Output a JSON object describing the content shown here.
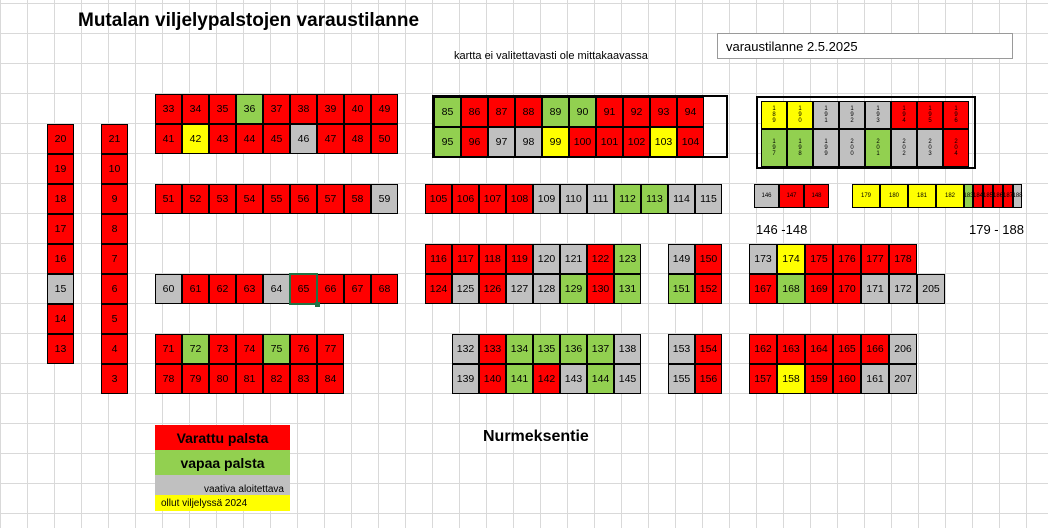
{
  "title": "Mutalan viljelypalstojen varaustilanne",
  "note": "kartta ei valitettavasti ole mittakaavassa",
  "status_date": "varaustilanne 2.5.2025",
  "road": "Nurmeksentie",
  "range_a": "146 -148",
  "range_b": "179 - 188",
  "legend": {
    "reserved": "Varattu palsta",
    "free": "vapaa palsta",
    "needs_work": "vaativa aloitettava",
    "grown_2024": "ollut viljelyssä 2024"
  },
  "colors": {
    "reserved": "#ff0000",
    "free": "#92d050",
    "needs_work": "#c0c0c0",
    "grown_2024": "#ffff00"
  },
  "blocks": [
    {
      "id": "col-20-13",
      "x0": 47,
      "y0": 124,
      "w": 27,
      "h": 30,
      "rows": [
        [
          [
            "20",
            "red"
          ]
        ],
        [
          [
            "19",
            "red"
          ]
        ],
        [
          [
            "18",
            "red"
          ]
        ],
        [
          [
            "17",
            "red"
          ]
        ],
        [
          [
            "16",
            "red"
          ]
        ],
        [
          [
            "15",
            "gray"
          ]
        ],
        [
          [
            "14",
            "red"
          ]
        ],
        [
          [
            "13",
            "red"
          ]
        ]
      ]
    },
    {
      "id": "col-21-3",
      "x0": 101,
      "y0": 124,
      "w": 27,
      "h": 30,
      "rows": [
        [
          [
            "21",
            "red"
          ]
        ],
        [
          [
            "10",
            "red"
          ]
        ],
        [
          [
            "9",
            "red"
          ]
        ],
        [
          [
            "8",
            "red"
          ]
        ],
        [
          [
            "7",
            "red"
          ]
        ],
        [
          [
            "6",
            "red"
          ]
        ],
        [
          [
            "5",
            "red"
          ]
        ],
        [
          [
            "4",
            "red"
          ]
        ],
        [
          [
            "3",
            "red"
          ]
        ]
      ]
    },
    {
      "id": "block-33-50",
      "x0": 155,
      "y0": 94,
      "w": 27,
      "h": 30,
      "rows": [
        [
          [
            "33",
            "red"
          ],
          [
            "34",
            "red"
          ],
          [
            "35",
            "red"
          ],
          [
            "36",
            "green"
          ],
          [
            "37",
            "red"
          ],
          [
            "38",
            "red"
          ],
          [
            "39",
            "red"
          ],
          [
            "40",
            "red"
          ],
          [
            "49",
            "red"
          ]
        ],
        [
          [
            "41",
            "red"
          ],
          [
            "42",
            "yellow"
          ],
          [
            "43",
            "red"
          ],
          [
            "44",
            "red"
          ],
          [
            "45",
            "red"
          ],
          [
            "46",
            "gray"
          ],
          [
            "47",
            "red"
          ],
          [
            "48",
            "red"
          ],
          [
            "50",
            "red"
          ]
        ]
      ]
    },
    {
      "id": "block-51-59",
      "x0": 155,
      "y0": 184,
      "w": 27,
      "h": 30,
      "rows": [
        [
          [
            "51",
            "red"
          ],
          [
            "52",
            "red"
          ],
          [
            "53",
            "red"
          ],
          [
            "54",
            "red"
          ],
          [
            "55",
            "red"
          ],
          [
            "56",
            "red"
          ],
          [
            "57",
            "red"
          ],
          [
            "58",
            "red"
          ],
          [
            "59",
            "gray"
          ]
        ]
      ]
    },
    {
      "id": "block-60-68",
      "x0": 155,
      "y0": 274,
      "w": 27,
      "h": 30,
      "rows": [
        [
          [
            "60",
            "gray"
          ],
          [
            "61",
            "red"
          ],
          [
            "62",
            "red"
          ],
          [
            "63",
            "red"
          ],
          [
            "64",
            "gray"
          ],
          [
            "65",
            "red"
          ],
          [
            "66",
            "red"
          ],
          [
            "67",
            "red"
          ],
          [
            "68",
            "red"
          ]
        ]
      ]
    },
    {
      "id": "block-71-84",
      "x0": 155,
      "y0": 334,
      "w": 27,
      "h": 30,
      "rows": [
        [
          [
            "71",
            "red"
          ],
          [
            "72",
            "green"
          ],
          [
            "73",
            "red"
          ],
          [
            "74",
            "red"
          ],
          [
            "75",
            "green"
          ],
          [
            "76",
            "red"
          ],
          [
            "77",
            "red"
          ]
        ],
        [
          [
            "78",
            "red"
          ],
          [
            "79",
            "red"
          ],
          [
            "80",
            "red"
          ],
          [
            "81",
            "red"
          ],
          [
            "82",
            "red"
          ],
          [
            "83",
            "red"
          ],
          [
            "84",
            "red"
          ]
        ]
      ]
    },
    {
      "id": "block-85-104",
      "x0": 434,
      "y0": 97,
      "w": 27,
      "h": 30,
      "rows": [
        [
          [
            "85",
            "green"
          ],
          [
            "86",
            "red"
          ],
          [
            "87",
            "red"
          ],
          [
            "88",
            "red"
          ],
          [
            "89",
            "green"
          ],
          [
            "90",
            "green"
          ],
          [
            "91",
            "red"
          ],
          [
            "92",
            "red"
          ],
          [
            "93",
            "red"
          ],
          [
            "94",
            "red"
          ]
        ],
        [
          [
            "95",
            "green"
          ],
          [
            "96",
            "red"
          ],
          [
            "97",
            "gray"
          ],
          [
            "98",
            "gray"
          ],
          [
            "99",
            "yellow"
          ],
          [
            "100",
            "red"
          ],
          [
            "101",
            "red"
          ],
          [
            "102",
            "red"
          ],
          [
            "103",
            "yellow"
          ],
          [
            "104",
            "red"
          ]
        ]
      ]
    },
    {
      "id": "block-105-115",
      "x0": 425,
      "y0": 184,
      "w": 27,
      "h": 30,
      "rows": [
        [
          [
            "105",
            "red"
          ],
          [
            "106",
            "red"
          ],
          [
            "107",
            "red"
          ],
          [
            "108",
            "red"
          ],
          [
            "109",
            "gray"
          ],
          [
            "110",
            "gray"
          ],
          [
            "111",
            "gray"
          ],
          [
            "112",
            "green"
          ],
          [
            "113",
            "green"
          ],
          [
            "114",
            "gray"
          ],
          [
            "115",
            "gray"
          ]
        ]
      ]
    },
    {
      "id": "block-116-131",
      "x0": 425,
      "y0": 244,
      "w": 27,
      "h": 30,
      "rows": [
        [
          [
            "116",
            "red"
          ],
          [
            "117",
            "red"
          ],
          [
            "118",
            "red"
          ],
          [
            "119",
            "red"
          ],
          [
            "120",
            "gray"
          ],
          [
            "121",
            "gray"
          ],
          [
            "122",
            "red"
          ],
          [
            "123",
            "green"
          ]
        ],
        [
          [
            "124",
            "red"
          ],
          [
            "125",
            "gray"
          ],
          [
            "126",
            "red"
          ],
          [
            "127",
            "gray"
          ],
          [
            "128",
            "gray"
          ],
          [
            "129",
            "green"
          ],
          [
            "130",
            "red"
          ],
          [
            "131",
            "green"
          ]
        ]
      ]
    },
    {
      "id": "block-132-145",
      "x0": 452,
      "y0": 334,
      "w": 27,
      "h": 30,
      "rows": [
        [
          [
            "132",
            "gray"
          ],
          [
            "133",
            "red"
          ],
          [
            "134",
            "green"
          ],
          [
            "135",
            "green"
          ],
          [
            "136",
            "green"
          ],
          [
            "137",
            "green"
          ],
          [
            "138",
            "gray"
          ]
        ],
        [
          [
            "139",
            "gray"
          ],
          [
            "140",
            "red"
          ],
          [
            "141",
            "green"
          ],
          [
            "142",
            "red"
          ],
          [
            "143",
            "gray"
          ],
          [
            "144",
            "green"
          ],
          [
            "145",
            "gray"
          ]
        ]
      ]
    },
    {
      "id": "block-149-152",
      "x0": 668,
      "y0": 244,
      "w": 27,
      "h": 30,
      "rows": [
        [
          [
            "149",
            "gray"
          ],
          [
            "150",
            "red"
          ]
        ],
        [
          [
            "151",
            "green"
          ],
          [
            "152",
            "red"
          ]
        ]
      ]
    },
    {
      "id": "block-153-156",
      "x0": 668,
      "y0": 334,
      "w": 27,
      "h": 30,
      "rows": [
        [
          [
            "153",
            "gray"
          ],
          [
            "154",
            "red"
          ]
        ],
        [
          [
            "155",
            "gray"
          ],
          [
            "156",
            "red"
          ]
        ]
      ]
    },
    {
      "id": "block-173-205",
      "x0": 749,
      "y0": 244,
      "w": 28,
      "h": 30,
      "rows": [
        [
          [
            "173",
            "gray"
          ],
          [
            "174",
            "yellow"
          ],
          [
            "175",
            "red"
          ],
          [
            "176",
            "red"
          ],
          [
            "177",
            "red"
          ],
          [
            "178",
            "red"
          ]
        ],
        [
          [
            "167",
            "red"
          ],
          [
            "168",
            "green"
          ],
          [
            "169",
            "red"
          ],
          [
            "170",
            "red"
          ],
          [
            "171",
            "gray"
          ],
          [
            "172",
            "gray"
          ],
          [
            "205",
            "gray"
          ]
        ]
      ]
    },
    {
      "id": "block-162-207",
      "x0": 749,
      "y0": 334,
      "w": 28,
      "h": 30,
      "rows": [
        [
          [
            "162",
            "red"
          ],
          [
            "163",
            "red"
          ],
          [
            "164",
            "red"
          ],
          [
            "165",
            "red"
          ],
          [
            "166",
            "red"
          ],
          [
            "206",
            "gray"
          ]
        ],
        [
          [
            "157",
            "red"
          ],
          [
            "158",
            "yellow"
          ],
          [
            "159",
            "red"
          ],
          [
            "160",
            "red"
          ],
          [
            "161",
            "gray"
          ],
          [
            "207",
            "gray"
          ]
        ]
      ]
    }
  ],
  "mini_top": [
    {
      "label": "1\n8\n9",
      "color": "yellow"
    },
    {
      "label": "1\n9\n0",
      "color": "yellow"
    },
    {
      "label": "1\n9\n1",
      "color": "gray"
    },
    {
      "label": "1\n9\n2",
      "color": "gray"
    },
    {
      "label": "1\n9\n3",
      "color": "gray"
    },
    {
      "label": "1\n9\n4",
      "color": "red"
    },
    {
      "label": "1\n9\n5",
      "color": "red"
    },
    {
      "label": "1\n9\n6",
      "color": "red"
    }
  ],
  "mini_bottom": [
    {
      "label": "1\n9\n7",
      "color": "green"
    },
    {
      "label": "1\n9\n8",
      "color": "green"
    },
    {
      "label": "1\n9\n9",
      "color": "gray"
    },
    {
      "label": "2\n0\n0",
      "color": "gray"
    },
    {
      "label": "2\n0\n1",
      "color": "green"
    },
    {
      "label": "2\n0\n2",
      "color": "gray"
    },
    {
      "label": "2\n0\n3",
      "color": "gray"
    },
    {
      "label": "2\n0\n4",
      "color": "red"
    }
  ],
  "small_146": [
    {
      "label": "146",
      "color": "gray"
    },
    {
      "label": "147",
      "color": "red"
    },
    {
      "label": "148",
      "color": "red"
    }
  ],
  "small_179": [
    {
      "label": "179",
      "color": "yellow"
    },
    {
      "label": "180",
      "color": "yellow"
    },
    {
      "label": "181",
      "color": "yellow"
    },
    {
      "label": "182",
      "color": "yellow"
    },
    {
      "label": "183",
      "color": "green"
    },
    {
      "label": "184",
      "color": "red"
    },
    {
      "label": "185",
      "color": "red"
    },
    {
      "label": "186",
      "color": "red"
    },
    {
      "label": "187",
      "color": "red"
    },
    {
      "label": "188",
      "color": "gray"
    }
  ]
}
